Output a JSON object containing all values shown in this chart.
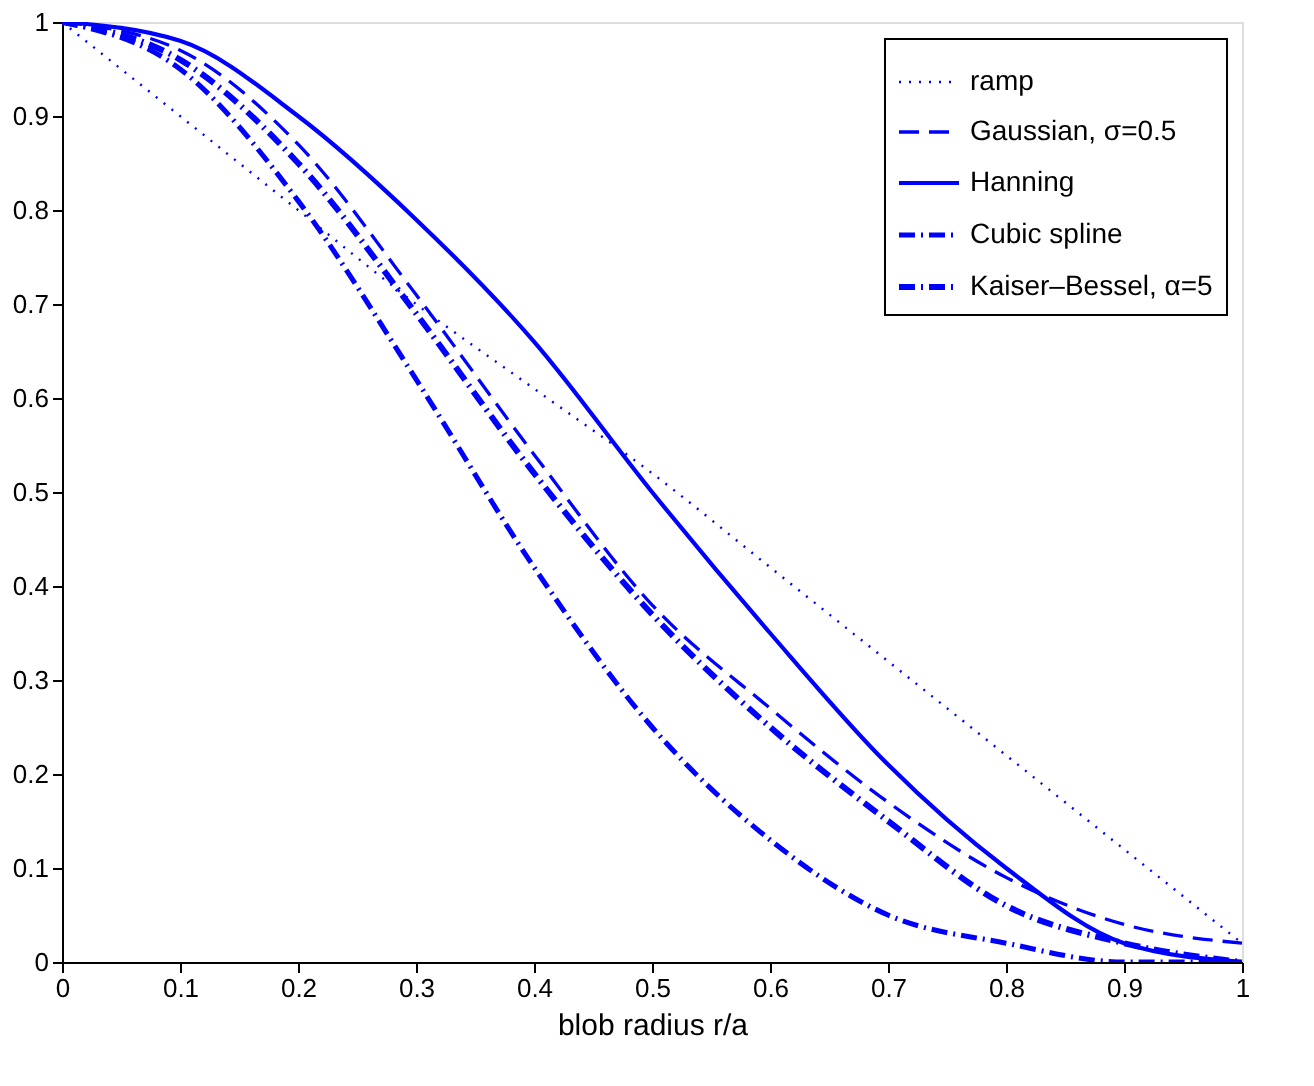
{
  "chart_data": {
    "type": "line",
    "xlabel": "blob radius r/a",
    "x": [
      0,
      0.1,
      0.2,
      0.3,
      0.4,
      0.5,
      0.6,
      0.7,
      0.8,
      0.9,
      1
    ],
    "series": [
      {
        "name": "ramp",
        "color": "#0000ff",
        "line_style": "dotted",
        "values": [
          1,
          0.9,
          0.8,
          0.7,
          0.61,
          0.52,
          0.42,
          0.32,
          0.22,
          0.12,
          0.02
        ]
      },
      {
        "name": "Gaussian, σ=0.5",
        "color": "#0000ff",
        "line_style": "dashed",
        "values": [
          1,
          0.97,
          0.87,
          0.71,
          0.54,
          0.38,
          0.27,
          0.17,
          0.09,
          0.04,
          0.02
        ]
      },
      {
        "name": "Hanning",
        "color": "#0000ff",
        "line_style": "solid",
        "values": [
          1,
          0.98,
          0.9,
          0.79,
          0.66,
          0.5,
          0.35,
          0.21,
          0.1,
          0.02,
          0
        ]
      },
      {
        "name": "Cubic spline",
        "color": "#0000ff",
        "line_style": "dashdot",
        "values": [
          1,
          0.95,
          0.81,
          0.62,
          0.42,
          0.25,
          0.13,
          0.05,
          0.02,
          0,
          0
        ]
      },
      {
        "name": "Kaiser–Bessel, α=5",
        "color": "#0000ff",
        "line_style": "dashdot",
        "values": [
          1,
          0.96,
          0.85,
          0.69,
          0.52,
          0.37,
          0.25,
          0.15,
          0.06,
          0.02,
          0
        ]
      }
    ],
    "xlim": [
      0,
      1
    ],
    "xticks": [
      0,
      0.1,
      0.2,
      0.3,
      0.4,
      0.5,
      0.6,
      0.7,
      0.8,
      0.9,
      1
    ],
    "ylim": [
      0,
      1
    ],
    "yticks": [
      0,
      0.1,
      0.2,
      0.3,
      0.4,
      0.5,
      0.6,
      0.7,
      0.8,
      0.9,
      1
    ],
    "grid": false,
    "legend": "top right",
    "marker": "none"
  }
}
